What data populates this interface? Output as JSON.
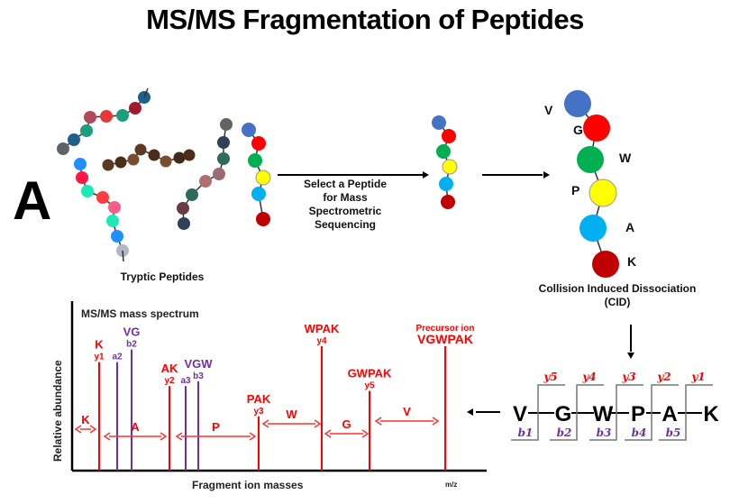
{
  "title": "MS/MS Fragmentation of Peptides",
  "panel_label": "A",
  "tryptic_label": "Tryptic Peptides",
  "select_label": [
    "Select a Peptide",
    "for Mass",
    "Spectrometric",
    "Sequencing"
  ],
  "cid_label": [
    "Collision Induced Dissociation",
    "(CID)"
  ],
  "peptide": {
    "residues": [
      "V",
      "G",
      "W",
      "P",
      "A",
      "K"
    ],
    "colors": [
      "#4472c4",
      "#ff0000",
      "#00b050",
      "#ffff00",
      "#00b0f0",
      "#c00000"
    ]
  },
  "fragment_scheme": {
    "y_labels": [
      "y5",
      "y4",
      "y3",
      "y2",
      "y1"
    ],
    "b_labels": [
      "b1",
      "b2",
      "b3",
      "b4",
      "b5"
    ],
    "y_color": "#ff0000",
    "b_color": "#7030a0"
  },
  "spectrum": {
    "title": "MS/MS mass spectrum",
    "ylabel": "Relative abundance",
    "xlabel": "Fragment ion masses",
    "x_unit": "m/z",
    "precursor_label": "Precursor ion",
    "peaks": [
      {
        "ion": "y1",
        "seq": "K",
        "series": "y",
        "height": 0.68
      },
      {
        "ion": "a2",
        "seq": "",
        "series": "a",
        "height": 0.68
      },
      {
        "ion": "b2",
        "seq": "VG",
        "series": "b",
        "height": 0.76
      },
      {
        "ion": "y2",
        "seq": "AK",
        "series": "y",
        "height": 0.53
      },
      {
        "ion": "a3",
        "seq": "",
        "series": "a",
        "height": 0.53
      },
      {
        "ion": "b3",
        "seq": "VGW",
        "series": "b",
        "height": 0.56
      },
      {
        "ion": "y3",
        "seq": "PAK",
        "series": "y",
        "height": 0.34
      },
      {
        "ion": "y4",
        "seq": "WPAK",
        "series": "y",
        "height": 0.78
      },
      {
        "ion": "y5",
        "seq": "GWPAK",
        "series": "y",
        "height": 0.5
      },
      {
        "ion": "",
        "seq": "VGWPAK",
        "series": "precursor",
        "height": 0.78
      }
    ],
    "mass_differences": [
      "K",
      "A",
      "P",
      "W",
      "G",
      "V"
    ]
  },
  "tryptic_peptides": [
    {
      "colors": [
        "#5f6368",
        "#1f5f8b",
        "#1a9e7e",
        "#b24a5a",
        "#e53935",
        "#1a9e7e",
        "#a01c2c",
        "#1f5f8b"
      ]
    },
    {
      "colors": [
        "#1e90ff",
        "#ff1744",
        "#1de9b6",
        "#ff3d3d",
        "#ff5c8a",
        "#1de9b6",
        "#1e90ff",
        "#b0b8c4"
      ]
    },
    {
      "colors": [
        "#5a3a22",
        "#4a2e1a",
        "#7a4e2d",
        "#5a3a22",
        "#4a2e1a",
        "#7a4e2d",
        "#3e2a1a",
        "#4a2e1a"
      ]
    },
    {
      "colors": [
        "#2f4255",
        "#6b3a44",
        "#2f6b5a",
        "#b07070",
        "#9a6b72",
        "#2f6b5a",
        "#2f4255",
        "#636363"
      ]
    }
  ]
}
